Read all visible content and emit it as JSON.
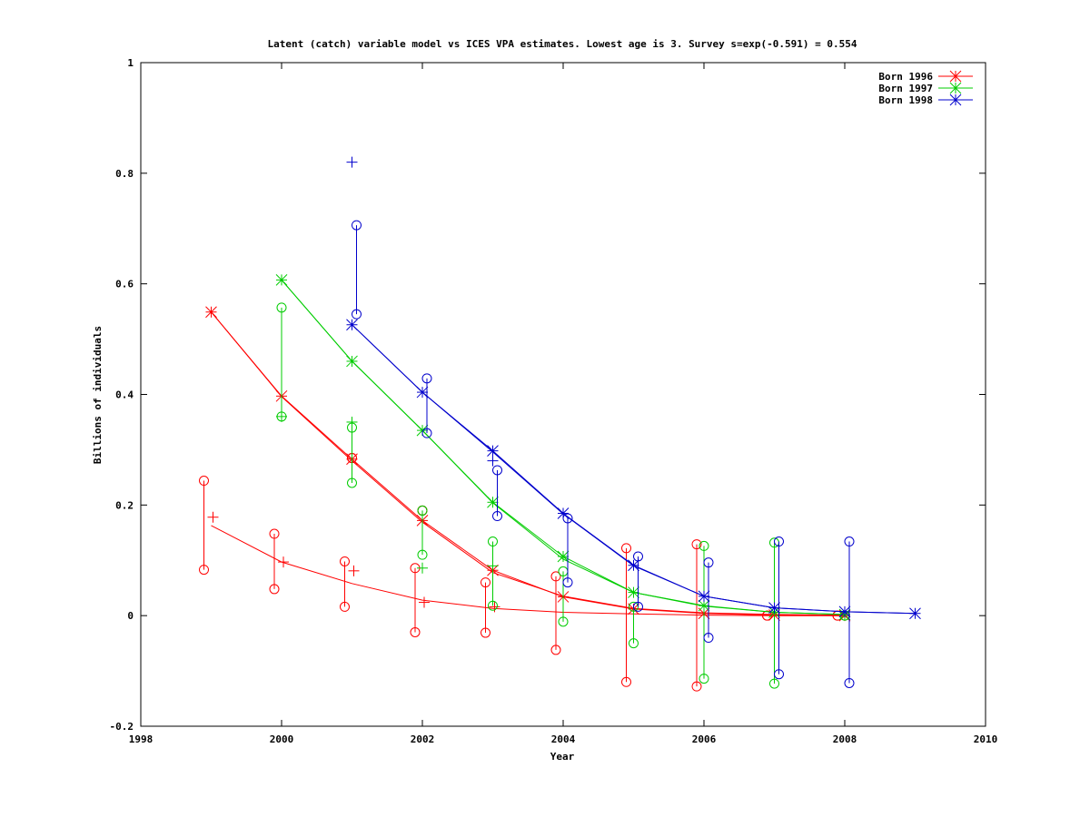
{
  "chart_data": {
    "type": "line",
    "title": "Latent (catch) variable model vs ICES VPA estimates. Lowest age is 3. Survey s=exp(-0.591) = 0.554",
    "xlabel": "Year",
    "ylabel": "Billions of individuals",
    "xlim": [
      1998,
      2010
    ],
    "ylim": [
      -0.2,
      1.0
    ],
    "x_ticks": [
      "1998",
      "2000",
      "2002",
      "2004",
      "2006",
      "2008",
      "2010"
    ],
    "y_ticks": [
      "-0.2",
      "0",
      "0.2",
      "0.4",
      "0.6",
      "0.8",
      "1"
    ],
    "legend_position": "top-right",
    "series": [
      {
        "name": "Born 1996",
        "color": "#ff0000",
        "vpa": [
          [
            1999,
            0.549
          ],
          [
            2000,
            0.397
          ],
          [
            2001,
            0.283
          ],
          [
            2002,
            0.172
          ],
          [
            2003,
            0.082
          ],
          [
            2004,
            0.034
          ],
          [
            2005,
            0.012
          ],
          [
            2006,
            0.004
          ],
          [
            2007,
            0.001
          ],
          [
            2008,
            0.0
          ]
        ],
        "model": [
          [
            1999,
            0.549
          ],
          [
            2000,
            0.396
          ],
          [
            2001,
            0.28
          ],
          [
            2002,
            0.169
          ],
          [
            2003,
            0.078
          ],
          [
            2004,
            0.035
          ],
          [
            2005,
            0.013
          ],
          [
            2006,
            0.005
          ],
          [
            2007,
            0.002
          ],
          [
            2008,
            0.001
          ]
        ],
        "survey_intervals": [
          [
            2001,
            0.285,
            0.285
          ],
          [
            2002,
            0.19,
            0.19
          ]
        ]
      },
      {
        "name": "Born 1997",
        "color": "#00cc00",
        "vpa": [
          [
            2000,
            0.607
          ],
          [
            2001,
            0.46
          ],
          [
            2002,
            0.335
          ],
          [
            2003,
            0.205
          ],
          [
            2004,
            0.107
          ],
          [
            2005,
            0.042
          ],
          [
            2006,
            0.018
          ],
          [
            2007,
            0.006
          ],
          [
            2008,
            0.002
          ]
        ],
        "model": [
          [
            2000,
            0.607
          ],
          [
            2001,
            0.46
          ],
          [
            2002,
            0.335
          ],
          [
            2003,
            0.204
          ],
          [
            2004,
            0.102
          ],
          [
            2005,
            0.042
          ],
          [
            2006,
            0.017
          ],
          [
            2007,
            0.006
          ],
          [
            2008,
            0.002
          ]
        ],
        "survey_intervals": [
          [
            2000,
            0.557,
            0.36
          ],
          [
            2001,
            0.34,
            0.24
          ],
          [
            2002,
            0.19,
            0.11
          ],
          [
            2003,
            0.134,
            0.018
          ],
          [
            2004,
            0.08,
            -0.011
          ],
          [
            2005,
            0.016,
            -0.05
          ],
          [
            2006,
            0.126,
            -0.114
          ],
          [
            2007,
            0.132,
            -0.123
          ],
          [
            2008,
            0.0,
            0.0
          ]
        ]
      },
      {
        "name": "Born 1998",
        "color": "#0000cc",
        "vpa": [
          [
            2001,
            0.526
          ],
          [
            2002,
            0.404
          ],
          [
            2003,
            0.298
          ],
          [
            2004,
            0.185
          ],
          [
            2005,
            0.091
          ],
          [
            2006,
            0.035
          ],
          [
            2007,
            0.014
          ],
          [
            2008,
            0.007
          ],
          [
            2009,
            0.004
          ]
        ],
        "model": [
          [
            2001,
            0.526
          ],
          [
            2002,
            0.404
          ],
          [
            2003,
            0.296
          ],
          [
            2004,
            0.184
          ],
          [
            2005,
            0.09
          ],
          [
            2006,
            0.035
          ],
          [
            2007,
            0.014
          ],
          [
            2008,
            0.007
          ],
          [
            2009,
            0.004
          ]
        ],
        "survey_intervals": [
          [
            2001,
            0.706,
            0.545
          ],
          [
            2002,
            0.429,
            0.33
          ],
          [
            2003,
            0.263,
            0.18
          ],
          [
            2004,
            0.176,
            0.06
          ],
          [
            2005,
            0.107,
            0.016
          ],
          [
            2006,
            0.096,
            -0.04
          ],
          [
            2007,
            0.134,
            -0.106
          ],
          [
            2008,
            0.134,
            -0.122
          ]
        ]
      }
    ],
    "lowest_age_series": {
      "color": "#ff0000",
      "curve": [
        [
          1999,
          0.163
        ],
        [
          2000,
          0.097
        ],
        [
          2001,
          0.058
        ],
        [
          2002,
          0.028
        ],
        [
          2003,
          0.013
        ],
        [
          2004,
          0.006
        ],
        [
          2005,
          0.003
        ],
        [
          2006,
          0.001
        ],
        [
          2007,
          0.0
        ],
        [
          2008,
          0.0
        ]
      ],
      "plus_markers": [
        [
          1999,
          0.178
        ],
        [
          2000,
          0.097
        ],
        [
          2001,
          0.081
        ],
        [
          2002,
          0.024
        ],
        [
          2003,
          0.016
        ]
      ],
      "survey_intervals": [
        [
          1999,
          0.244,
          0.083
        ],
        [
          2000,
          0.148,
          0.048
        ],
        [
          2001,
          0.098,
          0.016
        ],
        [
          2002,
          0.086,
          -0.03
        ],
        [
          2003,
          0.06,
          -0.031
        ],
        [
          2004,
          0.071,
          -0.062
        ],
        [
          2005,
          0.122,
          -0.12
        ],
        [
          2006,
          0.129,
          -0.128
        ],
        [
          2007,
          0.0,
          0.0
        ],
        [
          2008,
          0.0,
          0.0
        ]
      ]
    },
    "survey_plus_markers": [
      {
        "color": "#00cc00",
        "points": [
          [
            2000,
            0.36
          ],
          [
            2001,
            0.35
          ],
          [
            2002,
            0.086
          ],
          [
            2003,
            0.09
          ]
        ]
      },
      {
        "color": "#0000cc",
        "points": [
          [
            2001,
            0.82
          ],
          [
            2003,
            0.28
          ]
        ]
      }
    ]
  }
}
